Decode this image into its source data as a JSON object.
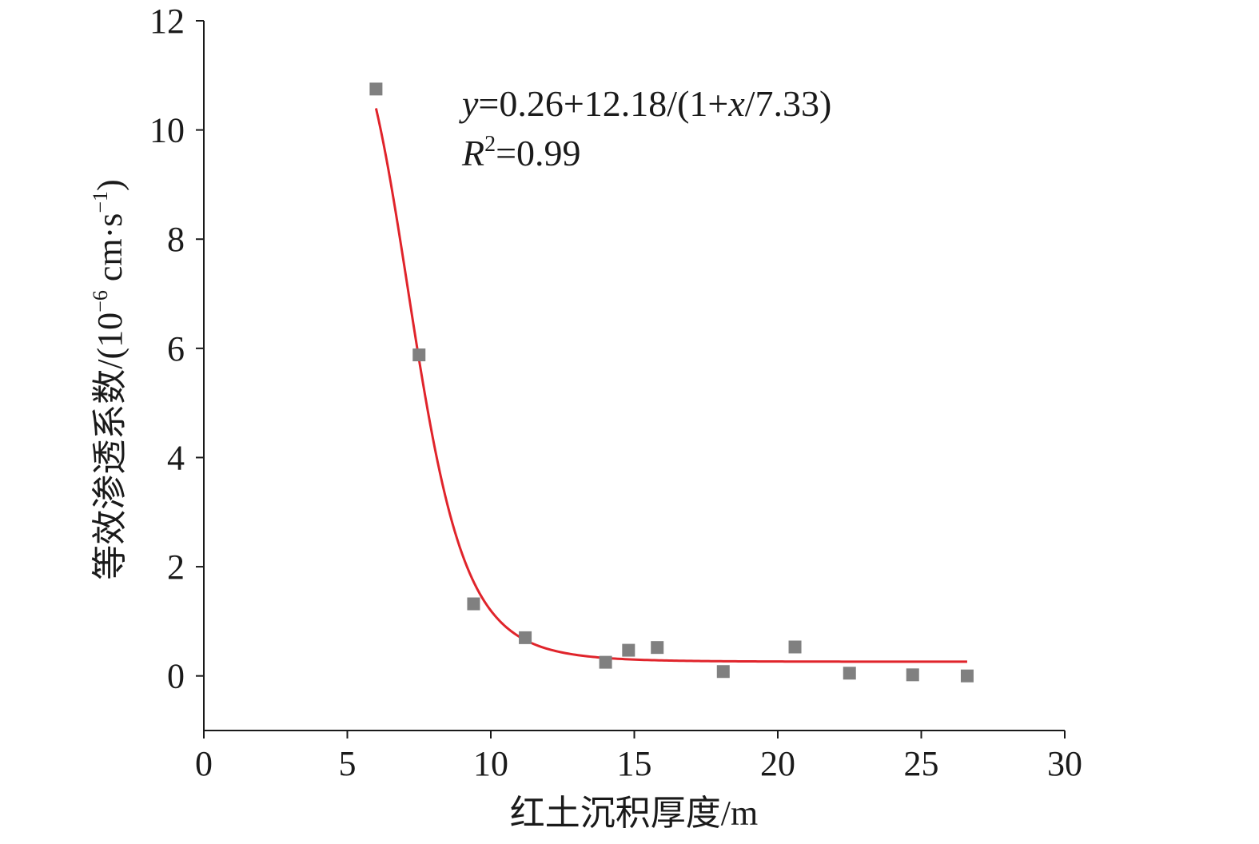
{
  "chart_data": {
    "type": "scatter",
    "xlabel": "红土沉积厚度/m",
    "ylabel": {
      "prefix": "等效渗透系数/(10",
      "exp": "−6",
      "mid": " cm·s",
      "exp2": "−1",
      "suffix": ")"
    },
    "xlim": [
      0,
      30
    ],
    "ylim": [
      -1,
      12
    ],
    "x_ticks": [
      "0",
      "5",
      "10",
      "15",
      "20",
      "25",
      "30"
    ],
    "y_ticks": [
      "0",
      "2",
      "4",
      "6",
      "8",
      "10",
      "12"
    ],
    "grid": false,
    "legend": "none",
    "points": {
      "x": [
        6.0,
        7.5,
        9.4,
        11.2,
        14.0,
        14.8,
        15.8,
        18.1,
        20.6,
        22.5,
        24.7,
        26.6
      ],
      "y": [
        10.75,
        5.88,
        1.32,
        0.7,
        0.25,
        0.47,
        0.52,
        0.08,
        0.53,
        0.05,
        0.02,
        0.0
      ]
    },
    "fit_curve": {
      "x_range": [
        6.0,
        26.6
      ],
      "model": "sigmoid",
      "a": 0.26,
      "b": 12.18,
      "x0": 7.33,
      "p": 8.0
    },
    "annotation": {
      "equation": {
        "y": "y",
        "rest1": "=0.26+12.18/(1+",
        "x": "x",
        "rest2": "/7.33)"
      },
      "r2": {
        "r": "R",
        "sup": "2",
        "rest": "=0.99"
      }
    },
    "colors": {
      "points": "#808080",
      "curve": "#e0242b",
      "axis": "#1a1a1a"
    }
  }
}
